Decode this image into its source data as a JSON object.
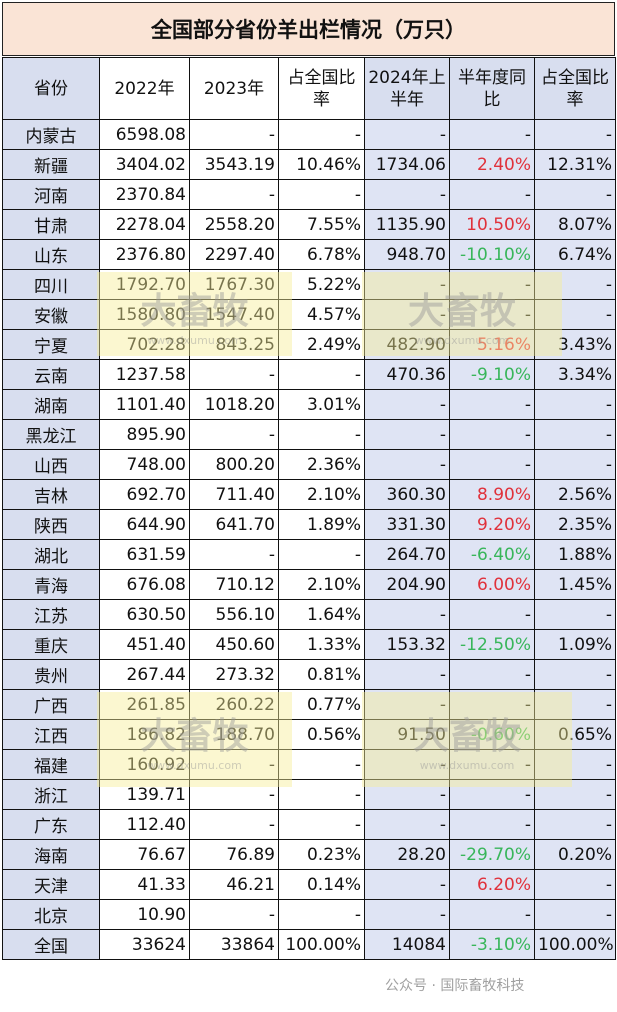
{
  "title": "全国部分省份羊出栏情况（万只）",
  "headers": [
    "省份",
    "2022年",
    "2023年",
    "占全国比率",
    "2024年上半年",
    "半年度同比",
    "占全国比率"
  ],
  "colors": {
    "increase": "#e0313b",
    "decrease": "#38b65a",
    "title_bg": "#fae4d6",
    "header_bg": "#d8deef"
  },
  "rows": [
    {
      "province": "内蒙古",
      "y2022": "6598.08",
      "y2023": "-",
      "share2023": "-",
      "h1_2024": "-",
      "yoy": "-",
      "share2024": "-"
    },
    {
      "province": "新疆",
      "y2022": "3404.02",
      "y2023": "3543.19",
      "share2023": "10.46%",
      "h1_2024": "1734.06",
      "yoy": "2.40%",
      "share2024": "12.31%"
    },
    {
      "province": "河南",
      "y2022": "2370.84",
      "y2023": "-",
      "share2023": "-",
      "h1_2024": "-",
      "yoy": "-",
      "share2024": "-"
    },
    {
      "province": "甘肃",
      "y2022": "2278.04",
      "y2023": "2558.20",
      "share2023": "7.55%",
      "h1_2024": "1135.90",
      "yoy": "10.50%",
      "share2024": "8.07%"
    },
    {
      "province": "山东",
      "y2022": "2376.80",
      "y2023": "2297.40",
      "share2023": "6.78%",
      "h1_2024": "948.70",
      "yoy": "-10.10%",
      "share2024": "6.74%"
    },
    {
      "province": "四川",
      "y2022": "1792.70",
      "y2023": "1767.30",
      "share2023": "5.22%",
      "h1_2024": "-",
      "yoy": "-",
      "share2024": "-"
    },
    {
      "province": "安徽",
      "y2022": "1580.80",
      "y2023": "1547.40",
      "share2023": "4.57%",
      "h1_2024": "-",
      "yoy": "-",
      "share2024": "-"
    },
    {
      "province": "宁夏",
      "y2022": "702.28",
      "y2023": "843.25",
      "share2023": "2.49%",
      "h1_2024": "482.90",
      "yoy": "5.16%",
      "share2024": "3.43%"
    },
    {
      "province": "云南",
      "y2022": "1237.58",
      "y2023": "-",
      "share2023": "-",
      "h1_2024": "470.36",
      "yoy": "-9.10%",
      "share2024": "3.34%"
    },
    {
      "province": "湖南",
      "y2022": "1101.40",
      "y2023": "1018.20",
      "share2023": "3.01%",
      "h1_2024": "-",
      "yoy": "-",
      "share2024": "-"
    },
    {
      "province": "黑龙江",
      "y2022": "895.90",
      "y2023": "-",
      "share2023": "-",
      "h1_2024": "-",
      "yoy": "-",
      "share2024": "-"
    },
    {
      "province": "山西",
      "y2022": "748.00",
      "y2023": "800.20",
      "share2023": "2.36%",
      "h1_2024": "-",
      "yoy": "-",
      "share2024": "-"
    },
    {
      "province": "吉林",
      "y2022": "692.70",
      "y2023": "711.40",
      "share2023": "2.10%",
      "h1_2024": "360.30",
      "yoy": "8.90%",
      "share2024": "2.56%"
    },
    {
      "province": "陕西",
      "y2022": "644.90",
      "y2023": "641.70",
      "share2023": "1.89%",
      "h1_2024": "331.30",
      "yoy": "9.20%",
      "share2024": "2.35%"
    },
    {
      "province": "湖北",
      "y2022": "631.59",
      "y2023": "-",
      "share2023": "-",
      "h1_2024": "264.70",
      "yoy": "-6.40%",
      "share2024": "1.88%"
    },
    {
      "province": "青海",
      "y2022": "676.08",
      "y2023": "710.12",
      "share2023": "2.10%",
      "h1_2024": "204.90",
      "yoy": "6.00%",
      "share2024": "1.45%"
    },
    {
      "province": "江苏",
      "y2022": "630.50",
      "y2023": "556.10",
      "share2023": "1.64%",
      "h1_2024": "-",
      "yoy": "-",
      "share2024": "-"
    },
    {
      "province": "重庆",
      "y2022": "451.40",
      "y2023": "450.60",
      "share2023": "1.33%",
      "h1_2024": "153.32",
      "yoy": "-12.50%",
      "share2024": "1.09%"
    },
    {
      "province": "贵州",
      "y2022": "267.44",
      "y2023": "273.32",
      "share2023": "0.81%",
      "h1_2024": "-",
      "yoy": "-",
      "share2024": "-"
    },
    {
      "province": "广西",
      "y2022": "261.85",
      "y2023": "260.22",
      "share2023": "0.77%",
      "h1_2024": "-",
      "yoy": "-",
      "share2024": "-"
    },
    {
      "province": "江西",
      "y2022": "186.82",
      "y2023": "188.70",
      "share2023": "0.56%",
      "h1_2024": "91.50",
      "yoy": "-0.60%",
      "share2024": "0.65%"
    },
    {
      "province": "福建",
      "y2022": "160.92",
      "y2023": "-",
      "share2023": "-",
      "h1_2024": "-",
      "yoy": "-",
      "share2024": "-"
    },
    {
      "province": "浙江",
      "y2022": "139.71",
      "y2023": "-",
      "share2023": "-",
      "h1_2024": "-",
      "yoy": "-",
      "share2024": "-"
    },
    {
      "province": "广东",
      "y2022": "112.40",
      "y2023": "-",
      "share2023": "-",
      "h1_2024": "-",
      "yoy": "-",
      "share2024": "-"
    },
    {
      "province": "海南",
      "y2022": "76.67",
      "y2023": "76.89",
      "share2023": "0.23%",
      "h1_2024": "28.20",
      "yoy": "-29.70%",
      "share2024": "0.20%"
    },
    {
      "province": "天津",
      "y2022": "41.33",
      "y2023": "46.21",
      "share2023": "0.14%",
      "h1_2024": "-",
      "yoy": "6.20%",
      "share2024": "-"
    },
    {
      "province": "北京",
      "y2022": "10.90",
      "y2023": "-",
      "share2023": "-",
      "h1_2024": "-",
      "yoy": "-",
      "share2024": "-"
    },
    {
      "province": "全国",
      "y2022": "33624",
      "y2023": "33864",
      "share2023": "100.00%",
      "h1_2024": "14084",
      "yoy": "-3.10%",
      "share2024": "100.00%"
    }
  ],
  "watermark": {
    "brand": "大畜牧",
    "url": "www.dxumu.com"
  },
  "footer": "公众号 · 国际畜牧科技"
}
